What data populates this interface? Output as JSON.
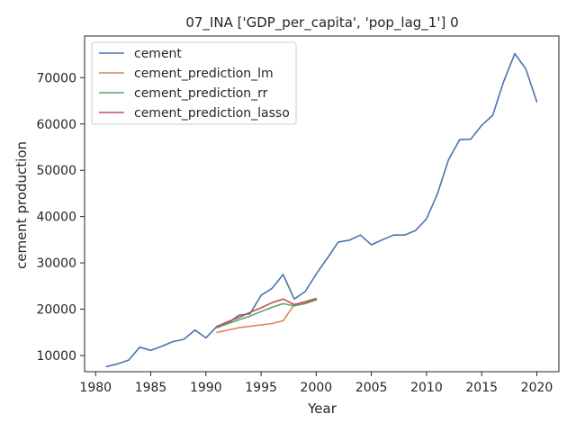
{
  "chart_data": {
    "type": "line",
    "title": "07_INA ['GDP_per_capita', 'pop_lag_1'] 0",
    "xlabel": "Year",
    "ylabel": "cement production",
    "xlim": [
      1979.0,
      2022.0
    ],
    "ylim": [
      6500,
      79000
    ],
    "xticks": [
      1980,
      1985,
      1990,
      1995,
      2000,
      2005,
      2010,
      2015,
      2020
    ],
    "yticks": [
      10000,
      20000,
      30000,
      40000,
      50000,
      60000,
      70000
    ],
    "legend_position": "top-left",
    "grid": false,
    "series": [
      {
        "name": "cement",
        "color": "#4c72b0",
        "x": [
          1981,
          1982,
          1983,
          1984,
          1985,
          1986,
          1987,
          1988,
          1989,
          1990,
          1991,
          1992,
          1993,
          1994,
          1995,
          1996,
          1997,
          1998,
          1999,
          2000,
          2001,
          2002,
          2003,
          2004,
          2005,
          2006,
          2007,
          2008,
          2009,
          2010,
          2011,
          2012,
          2013,
          2014,
          2015,
          2016,
          2017,
          2018,
          2019,
          2020
        ],
        "y": [
          7600,
          8200,
          9000,
          11800,
          11100,
          12000,
          13000,
          13500,
          15500,
          13800,
          16300,
          17000,
          18700,
          19000,
          23000,
          24500,
          27500,
          22200,
          23800,
          27600,
          31000,
          34500,
          34900,
          36000,
          33900,
          35000,
          36000,
          36000,
          37000,
          39500,
          45000,
          52300,
          56600,
          56700,
          59700,
          61900,
          69200,
          75200,
          71900,
          64800
        ]
      },
      {
        "name": "cement_prediction_lm",
        "color": "#dd8452",
        "x": [
          1991,
          1992,
          1993,
          1994,
          1995,
          1996,
          1997,
          1998,
          1999,
          2000
        ],
        "y": [
          15000,
          15500,
          16000,
          16300,
          16600,
          16900,
          17500,
          21000,
          21500,
          22000
        ]
      },
      {
        "name": "cement_prediction_rr",
        "color": "#55a868",
        "x": [
          1991,
          1992,
          1993,
          1994,
          1995,
          1996,
          1997,
          1998,
          1999,
          2000
        ],
        "y": [
          16000,
          16900,
          17700,
          18500,
          19500,
          20400,
          21200,
          20700,
          21200,
          22000
        ]
      },
      {
        "name": "cement_prediction_lasso",
        "color": "#c44e52",
        "x": [
          1991,
          1992,
          1993,
          1994,
          1995,
          1996,
          1997,
          1998,
          1999,
          2000
        ],
        "y": [
          16300,
          17300,
          18200,
          19300,
          20300,
          21400,
          22200,
          21000,
          21600,
          22300
        ]
      }
    ]
  }
}
